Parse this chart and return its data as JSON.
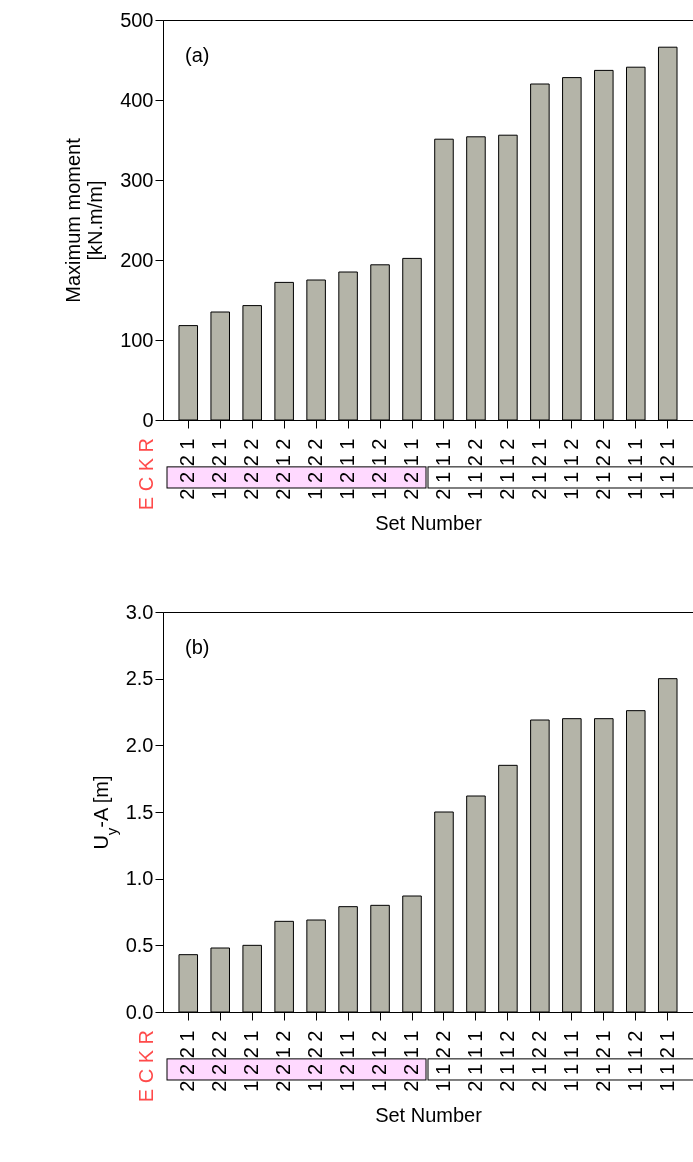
{
  "chart_data": [
    {
      "type": "bar",
      "categories": [
        "2 2 2 1",
        "1 2 2 1",
        "2 2 2 2",
        "2 2 1 2",
        "1 2 2 2",
        "1 2 1 1",
        "1 2 1 2",
        "2 2 1 1",
        "2 1 1 1",
        "1 1 2 2",
        "2 1 1 2",
        "2 1 2 1",
        "1 1 1 2",
        "2 1 2 2",
        "1 1 1 1",
        "1 1 2 1"
      ],
      "values": [
        118,
        135,
        143,
        172,
        175,
        185,
        194,
        202,
        351,
        354,
        356,
        420,
        428,
        437,
        441,
        466
      ],
      "color": "#b4b4a8",
      "ylim": [
        0,
        500
      ],
      "yticks": [
        0,
        100,
        200,
        300,
        400,
        500
      ],
      "xlabel": "Set Number",
      "ylabel": "Maximum moment\n[kN.m/m]",
      "annotations": [
        "(a)",
        "E C K R"
      ]
    },
    {
      "type": "bar",
      "categories": [
        "2 2 2 1",
        "2 2 2 2",
        "1 2 2 1",
        "2 2 1 2",
        "1 2 2 2",
        "1 2 1 1",
        "1 2 1 2",
        "2 2 1 1",
        "1 1 2 2",
        "2 1 1 1",
        "2 1 1 2",
        "2 1 2 2",
        "1 1 1 1",
        "2 1 2 1",
        "1 1 1 2",
        "1 1 2 1"
      ],
      "values": [
        0.43,
        0.48,
        0.5,
        0.68,
        0.69,
        0.79,
        0.8,
        0.87,
        1.5,
        1.62,
        1.85,
        2.19,
        2.2,
        2.2,
        2.26,
        2.5
      ],
      "color": "#b4b4a8",
      "ylim": [
        0,
        3
      ],
      "yticks": [
        {
          "value": 0,
          "label": "0.0"
        },
        {
          "value": 0.5,
          "label": "0.5"
        },
        {
          "value": 1,
          "label": "1.0"
        },
        {
          "value": 1.5,
          "label": "1.5"
        },
        {
          "value": 2,
          "label": "2.0"
        },
        {
          "value": 2.5,
          "label": "2.5"
        },
        {
          "value": 3,
          "label": "3.0"
        }
      ],
      "xlabel": "Set Number",
      "ylabel": "U$_{y}$-A [m]",
      "annotations": [
        "(b)",
        "E C K R"
      ]
    }
  ]
}
